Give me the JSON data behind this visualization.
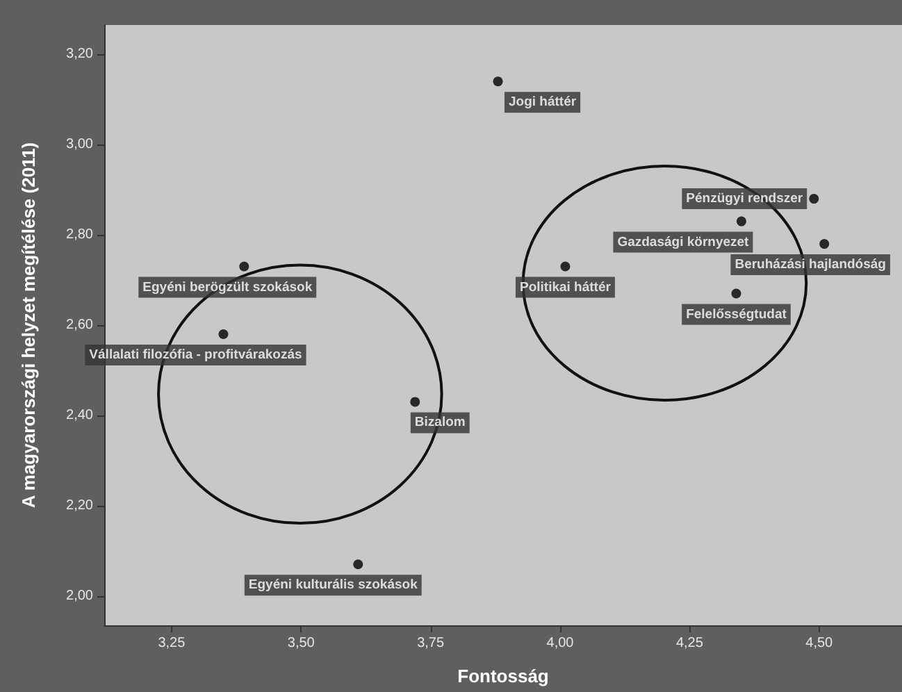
{
  "chart_data": {
    "type": "scatter",
    "xlabel": "Fontosság",
    "ylabel": "A magyarországi helyzet megítélése (2011)",
    "x": [
      3.88,
      4.49,
      4.35,
      4.51,
      4.01,
      4.34,
      3.39,
      3.35,
      3.72,
      3.61
    ],
    "values": [
      3.14,
      2.88,
      2.83,
      2.78,
      2.73,
      2.67,
      2.73,
      2.58,
      2.43,
      2.07
    ],
    "color": "#000000",
    "marker": "circle",
    "grid": false,
    "xlim": [
      3.12,
      4.66
    ],
    "xticks": [
      {
        "value": 3.25,
        "label": "3,25"
      },
      {
        "value": 3.5,
        "label": "3,50"
      },
      {
        "value": 3.75,
        "label": "3,75"
      },
      {
        "value": 4.0,
        "label": "4,00"
      },
      {
        "value": 4.25,
        "label": "4,25"
      },
      {
        "value": 4.5,
        "label": "4,50"
      }
    ],
    "ylim": [
      1.935,
      3.265
    ],
    "yticks": [
      {
        "value": 2.0,
        "label": "2,00"
      },
      {
        "value": 2.2,
        "label": "2,20"
      },
      {
        "value": 2.4,
        "label": "2,40"
      },
      {
        "value": 2.6,
        "label": "2,60"
      },
      {
        "value": 2.8,
        "label": "2,80"
      },
      {
        "value": 3.0,
        "label": "3,00"
      },
      {
        "value": 3.2,
        "label": "3,20"
      }
    ],
    "annotations": [
      {
        "text": "Jogi háttér",
        "x": 3.88,
        "y": 3.14
      },
      {
        "text": "Pénzügyi rendszer",
        "x": 4.49,
        "y": 2.88
      },
      {
        "text": "Gazdasági környezet",
        "x": 4.35,
        "y": 2.83
      },
      {
        "text": "Beruházási hajlandóság",
        "x": 4.51,
        "y": 2.78
      },
      {
        "text": "Politikai háttér",
        "x": 4.01,
        "y": 2.73
      },
      {
        "text": "Felelősségtudat",
        "x": 4.34,
        "y": 2.67
      },
      {
        "text": "Egyéni berögzült szokások",
        "x": 3.39,
        "y": 2.73
      },
      {
        "text": "Vállalati filozófia - profitvárakozás",
        "x": 3.35,
        "y": 2.58
      },
      {
        "text": "Bizalom",
        "x": 3.72,
        "y": 2.43
      },
      {
        "text": "Egyéni kulturális szokások",
        "x": 3.61,
        "y": 2.07
      }
    ]
  }
}
